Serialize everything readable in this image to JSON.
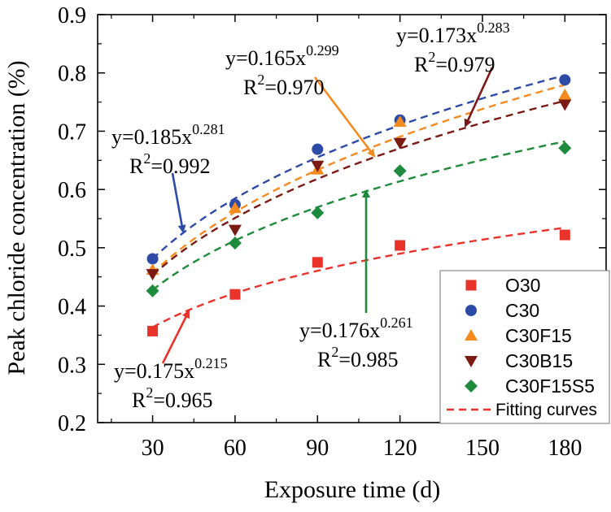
{
  "chart_data": {
    "type": "scatter",
    "xlabel": "Exposure time (d)",
    "ylabel": "Peak chloride concentration (%)",
    "xlim": [
      10,
      195
    ],
    "ylim": [
      0.2,
      0.9
    ],
    "xticks": [
      30,
      60,
      90,
      120,
      150,
      180
    ],
    "yticks": [
      0.2,
      0.3,
      0.4,
      0.5,
      0.6,
      0.7,
      0.8,
      0.9
    ],
    "x": [
      30,
      60,
      90,
      120,
      180
    ],
    "series": [
      {
        "name": "O30",
        "marker": "square",
        "color": "#e8322a",
        "values": [
          0.357,
          0.42,
          0.475,
          0.504,
          0.522
        ],
        "fit": {
          "a": 0.175,
          "b": 0.215,
          "label": "y=0.175x",
          "exponent": "0.215",
          "r2": "=0.965",
          "color": "#e8322a"
        }
      },
      {
        "name": "C30",
        "marker": "circle",
        "color": "#2c4aa6",
        "values": [
          0.481,
          0.574,
          0.669,
          0.719,
          0.788
        ],
        "fit": {
          "a": 0.185,
          "b": 0.281,
          "label": "y=0.185x",
          "exponent": "0.281",
          "r2": "=0.992",
          "color": "#2c4aa6"
        }
      },
      {
        "name": "C30F15",
        "marker": "triangle-up",
        "color": "#f58a1f",
        "values": [
          0.462,
          0.568,
          0.634,
          0.716,
          0.762
        ],
        "fit": {
          "a": 0.165,
          "b": 0.299,
          "label": "y=0.165x",
          "exponent": "0.299",
          "r2": "=0.970",
          "color": "#f58a1f"
        }
      },
      {
        "name": "C30B15",
        "marker": "triangle-down",
        "color": "#7b1a12",
        "values": [
          0.455,
          0.531,
          0.641,
          0.68,
          0.746
        ],
        "fit": {
          "a": 0.173,
          "b": 0.283,
          "label": "y=0.173x",
          "exponent": "0.283",
          "r2": "=0.979",
          "color": "#7b1a12"
        }
      },
      {
        "name": "C30F15S5",
        "marker": "diamond",
        "color": "#1e8a3c",
        "values": [
          0.426,
          0.508,
          0.56,
          0.632,
          0.671
        ],
        "fit": {
          "a": 0.176,
          "b": 0.261,
          "label": "y=0.176x",
          "exponent": "0.261",
          "r2": "=0.985",
          "color": "#1e8a3c"
        }
      }
    ],
    "legend_position": "bottom-right",
    "legend_fit_label": "Fitting curves",
    "r2_prefix": "R",
    "r2_power": "2"
  }
}
